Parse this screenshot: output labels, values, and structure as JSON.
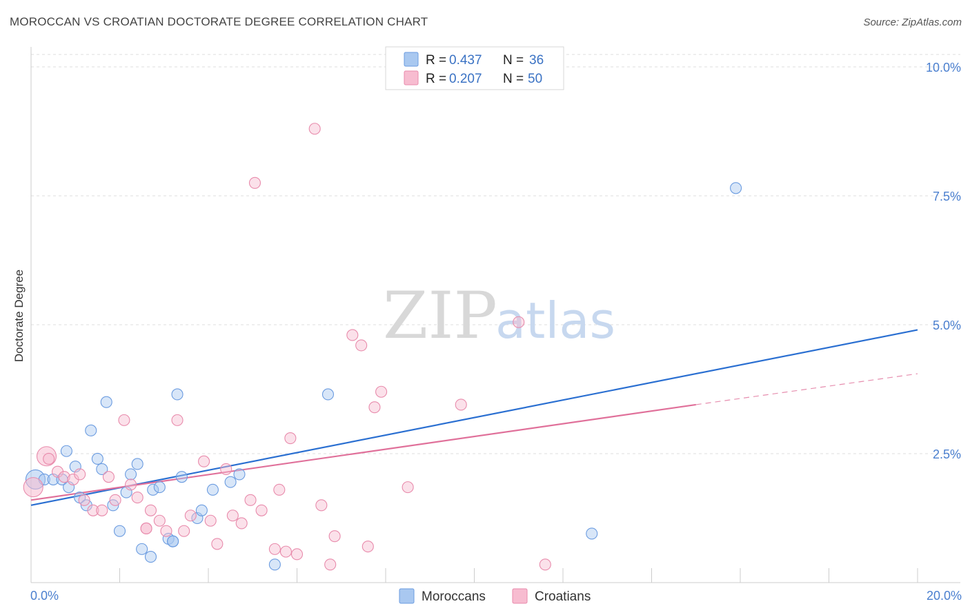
{
  "title": "MOROCCAN VS CROATIAN DOCTORATE DEGREE CORRELATION CHART",
  "source": "Source: ZipAtlas.com",
  "watermark": {
    "zip": "ZIP",
    "atlas": "atlas"
  },
  "legend_top": [
    {
      "r_label": "R = ",
      "r_value": "0.437",
      "n_label": "N = ",
      "n_value": "36",
      "color": "#a9c8f0",
      "stroke": "#6a9be0"
    },
    {
      "r_label": "R = ",
      "r_value": "0.207",
      "n_label": "N = ",
      "n_value": "50",
      "color": "#f7bcd0",
      "stroke": "#e88aab"
    }
  ],
  "legend_bottom": [
    {
      "label": "Moroccans",
      "color": "#a9c8f0",
      "stroke": "#6a9be0"
    },
    {
      "label": "Croatians",
      "color": "#f7bcd0",
      "stroke": "#e88aab"
    }
  ],
  "chart_data": {
    "type": "scatter",
    "title": "MOROCCAN VS CROATIAN DOCTORATE DEGREE CORRELATION CHART",
    "xlabel": "",
    "ylabel": "Doctorate Degree",
    "xlim": [
      0,
      20
    ],
    "ylim": [
      0,
      10.4
    ],
    "x_tick_labels": [
      {
        "value": 0,
        "label": "0.0%"
      },
      {
        "value": 20,
        "label": "20.0%"
      }
    ],
    "y_tick_labels": [
      {
        "value": 2.5,
        "label": "2.5%"
      },
      {
        "value": 5.0,
        "label": "5.0%"
      },
      {
        "value": 7.5,
        "label": "7.5%"
      },
      {
        "value": 10.0,
        "label": "10.0%"
      }
    ],
    "x_minor_ticks": [
      2,
      4,
      6,
      8,
      10,
      12,
      14,
      16,
      18,
      20
    ],
    "grid": true,
    "series": [
      {
        "name": "Moroccans",
        "color": "#6a9be0",
        "fill": "#a9c8f0",
        "trend": {
          "x": [
            0,
            20
          ],
          "y": [
            1.5,
            4.9
          ],
          "style": "solid",
          "color": "#2a6fd1"
        },
        "points": [
          {
            "x": 0.1,
            "y": 2.0,
            "big": true
          },
          {
            "x": 0.3,
            "y": 2.0
          },
          {
            "x": 0.5,
            "y": 2.0
          },
          {
            "x": 0.7,
            "y": 2.0
          },
          {
            "x": 0.8,
            "y": 2.55
          },
          {
            "x": 0.85,
            "y": 1.85
          },
          {
            "x": 1.0,
            "y": 2.25
          },
          {
            "x": 1.1,
            "y": 1.65
          },
          {
            "x": 1.25,
            "y": 1.5
          },
          {
            "x": 1.35,
            "y": 2.95
          },
          {
            "x": 1.5,
            "y": 2.4
          },
          {
            "x": 1.6,
            "y": 2.2
          },
          {
            "x": 1.7,
            "y": 3.5
          },
          {
            "x": 1.85,
            "y": 1.5
          },
          {
            "x": 2.0,
            "y": 1.0
          },
          {
            "x": 2.15,
            "y": 1.75
          },
          {
            "x": 2.25,
            "y": 2.1
          },
          {
            "x": 2.4,
            "y": 2.3
          },
          {
            "x": 2.5,
            "y": 0.65
          },
          {
            "x": 2.7,
            "y": 0.5
          },
          {
            "x": 2.75,
            "y": 1.8
          },
          {
            "x": 2.9,
            "y": 1.85
          },
          {
            "x": 3.1,
            "y": 0.85
          },
          {
            "x": 3.2,
            "y": 0.8
          },
          {
            "x": 3.3,
            "y": 3.65
          },
          {
            "x": 3.4,
            "y": 2.05
          },
          {
            "x": 3.75,
            "y": 1.25
          },
          {
            "x": 3.85,
            "y": 1.4
          },
          {
            "x": 4.1,
            "y": 1.8
          },
          {
            "x": 4.5,
            "y": 1.95
          },
          {
            "x": 4.7,
            "y": 2.1
          },
          {
            "x": 5.5,
            "y": 0.35
          },
          {
            "x": 6.7,
            "y": 3.65
          },
          {
            "x": 12.65,
            "y": 0.95
          },
          {
            "x": 15.9,
            "y": 7.65
          },
          {
            "x": 3.2,
            "y": 0.8
          }
        ]
      },
      {
        "name": "Croatians",
        "color": "#e88aab",
        "fill": "#f7bcd0",
        "trend": {
          "x": [
            0,
            15
          ],
          "y": [
            1.6,
            3.45
          ],
          "style": "solid",
          "color": "#e0709a",
          "extension": {
            "x": [
              15,
              20
            ],
            "y": [
              3.45,
              4.05
            ],
            "style": "dashed"
          }
        },
        "points": [
          {
            "x": 0.05,
            "y": 1.85,
            "big": true
          },
          {
            "x": 0.35,
            "y": 2.45,
            "big": true
          },
          {
            "x": 0.4,
            "y": 2.4
          },
          {
            "x": 0.6,
            "y": 2.15
          },
          {
            "x": 0.75,
            "y": 2.05
          },
          {
            "x": 0.95,
            "y": 2.0
          },
          {
            "x": 1.1,
            "y": 2.1
          },
          {
            "x": 1.2,
            "y": 1.6
          },
          {
            "x": 1.4,
            "y": 1.4
          },
          {
            "x": 1.6,
            "y": 1.4
          },
          {
            "x": 1.75,
            "y": 2.05
          },
          {
            "x": 1.9,
            "y": 1.6
          },
          {
            "x": 2.1,
            "y": 3.15
          },
          {
            "x": 2.25,
            "y": 1.9
          },
          {
            "x": 2.4,
            "y": 1.65
          },
          {
            "x": 2.6,
            "y": 1.05
          },
          {
            "x": 2.7,
            "y": 1.4
          },
          {
            "x": 2.9,
            "y": 1.2
          },
          {
            "x": 3.05,
            "y": 1.0
          },
          {
            "x": 3.3,
            "y": 3.15
          },
          {
            "x": 3.45,
            "y": 1.0
          },
          {
            "x": 3.6,
            "y": 1.3
          },
          {
            "x": 3.9,
            "y": 2.35
          },
          {
            "x": 4.05,
            "y": 1.2
          },
          {
            "x": 4.2,
            "y": 0.75
          },
          {
            "x": 4.4,
            "y": 2.2
          },
          {
            "x": 4.55,
            "y": 1.3
          },
          {
            "x": 4.75,
            "y": 1.15
          },
          {
            "x": 4.95,
            "y": 1.6
          },
          {
            "x": 5.05,
            "y": 7.75
          },
          {
            "x": 5.2,
            "y": 1.4
          },
          {
            "x": 5.5,
            "y": 0.65
          },
          {
            "x": 5.6,
            "y": 1.8
          },
          {
            "x": 5.75,
            "y": 0.6
          },
          {
            "x": 5.85,
            "y": 2.8
          },
          {
            "x": 6.0,
            "y": 0.55
          },
          {
            "x": 6.4,
            "y": 8.8
          },
          {
            "x": 6.55,
            "y": 1.5
          },
          {
            "x": 6.75,
            "y": 0.35
          },
          {
            "x": 6.85,
            "y": 0.9
          },
          {
            "x": 7.25,
            "y": 4.8
          },
          {
            "x": 7.45,
            "y": 4.6
          },
          {
            "x": 7.6,
            "y": 0.7
          },
          {
            "x": 7.75,
            "y": 3.4
          },
          {
            "x": 7.9,
            "y": 3.7
          },
          {
            "x": 8.5,
            "y": 1.85
          },
          {
            "x": 9.7,
            "y": 3.45
          },
          {
            "x": 11.0,
            "y": 5.05
          },
          {
            "x": 11.6,
            "y": 0.35
          },
          {
            "x": 2.6,
            "y": 1.05
          }
        ]
      }
    ],
    "legend": [
      {
        "name": "Moroccans",
        "R": 0.437,
        "N": 36
      },
      {
        "name": "Croatians",
        "R": 0.207,
        "N": 50
      }
    ]
  }
}
